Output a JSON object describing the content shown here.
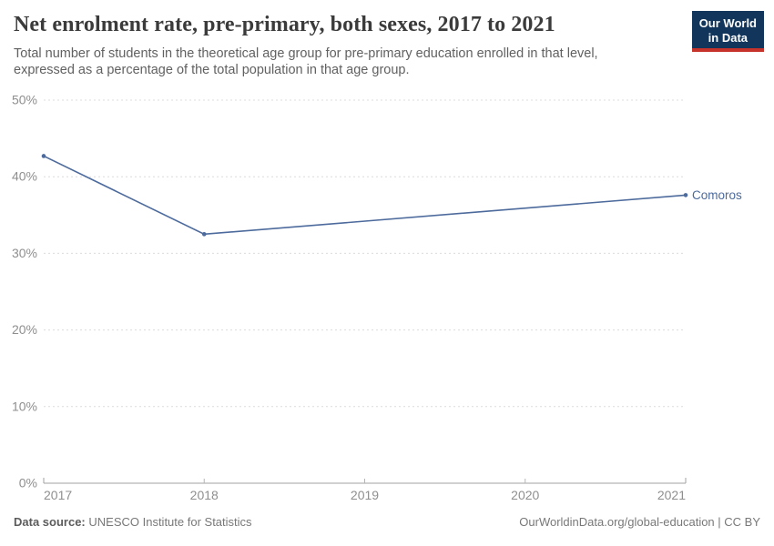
{
  "header": {
    "title": "Net enrolment rate, pre-primary, both sexes, 2017 to 2021",
    "subtitle": "Total number of students in the theoretical age group for pre-primary education enrolled in that level, expressed as a percentage of the total population in that age group."
  },
  "logo": {
    "line1": "Our World",
    "line2": "in Data",
    "bg_color": "#12355B",
    "bar_color": "#C5332B"
  },
  "chart_data": {
    "type": "line",
    "title": "Net enrolment rate, pre-primary, both sexes, 2017 to 2021",
    "series": [
      {
        "name": "Comoros",
        "color": "#4C6A9C",
        "points": [
          {
            "x": 2017,
            "y": 42.7
          },
          {
            "x": 2018,
            "y": 32.5
          },
          {
            "x": 2021,
            "y": 37.6
          }
        ]
      }
    ],
    "x_ticks": [
      2017,
      2018,
      2019,
      2020,
      2021
    ],
    "y_ticks": [
      0,
      10,
      20,
      30,
      40,
      50
    ],
    "y_tick_suffix": "%",
    "xlim": [
      2017,
      2021
    ],
    "ylim": [
      0,
      50
    ],
    "grid": "horizontal-dashed",
    "legend_position": "end-of-line-label"
  },
  "footer": {
    "source_label": "Data source:",
    "source_text": "UNESCO Institute for Statistics",
    "attribution": "OurWorldinData.org/global-education | CC BY"
  },
  "colors": {
    "line": "#4C6A9C",
    "grid": "#DCDCDC",
    "axis": "#A2A2A2",
    "tick": "#B5B5B5",
    "axis_text": "#8F8F8F",
    "title_text": "#3B3B3B",
    "subtitle_text": "#616161"
  }
}
